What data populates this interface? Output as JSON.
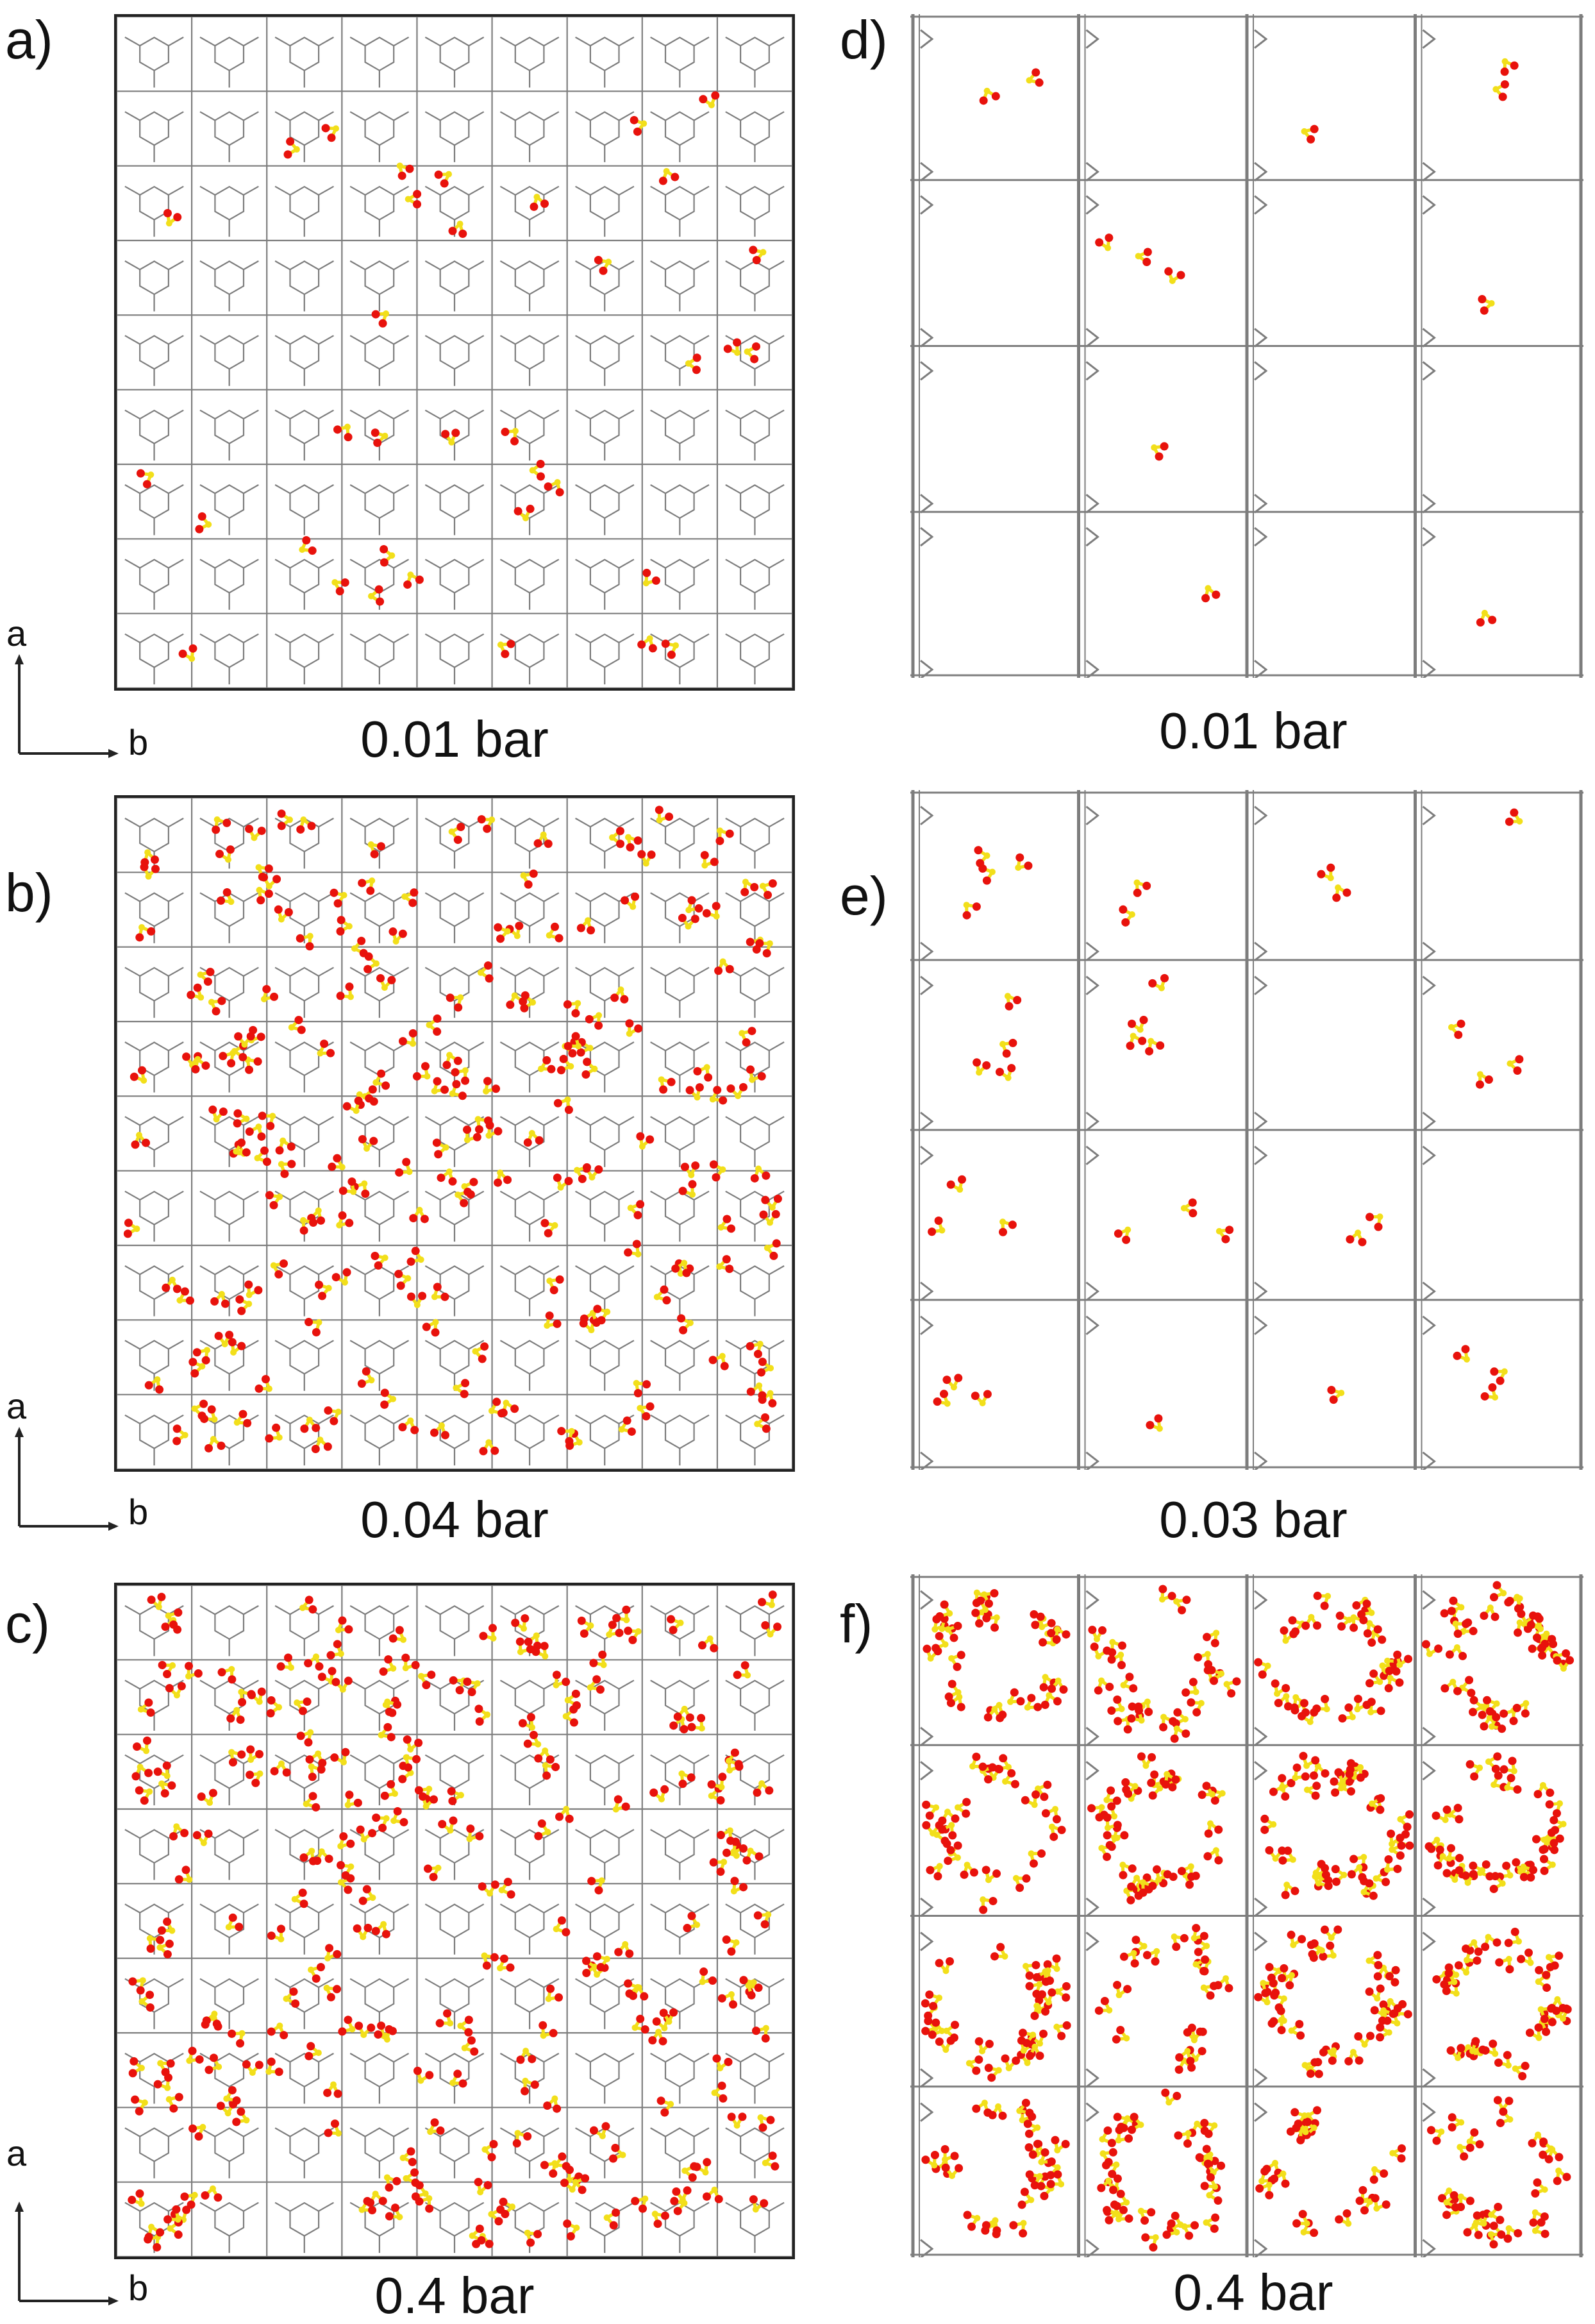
{
  "figure": {
    "panels": [
      {
        "id": "a",
        "label": "a)",
        "pressure": "0.01 bar",
        "view": "a-b",
        "framework": "dense",
        "molecule_density": "low",
        "axis_labels": {
          "vertical": "a",
          "horizontal": "b"
        }
      },
      {
        "id": "b",
        "label": "b)",
        "pressure": "0.04 bar",
        "view": "a-b",
        "framework": "dense",
        "molecule_density": "medium",
        "axis_labels": {
          "vertical": "a",
          "horizontal": "b"
        }
      },
      {
        "id": "c",
        "label": "c)",
        "pressure": "0.4 bar",
        "view": "a-b",
        "framework": "dense",
        "molecule_density": "high",
        "axis_labels": {
          "vertical": "a",
          "horizontal": "b"
        }
      },
      {
        "id": "d",
        "label": "d)",
        "pressure": "0.01 bar",
        "view": "channel",
        "framework": "channels",
        "molecule_density": "very-low"
      },
      {
        "id": "e",
        "label": "e)",
        "pressure": "0.03 bar",
        "view": "channel",
        "framework": "channels",
        "molecule_density": "low"
      },
      {
        "id": "f",
        "label": "f)",
        "pressure": "0.4 bar",
        "view": "channel",
        "framework": "channels",
        "molecule_density": "very-high"
      }
    ],
    "colors": {
      "oxygen": "#e8120c",
      "sulfur": "#f2df1a",
      "framework": "#7d7d7d",
      "frame_border": "#222222"
    }
  }
}
